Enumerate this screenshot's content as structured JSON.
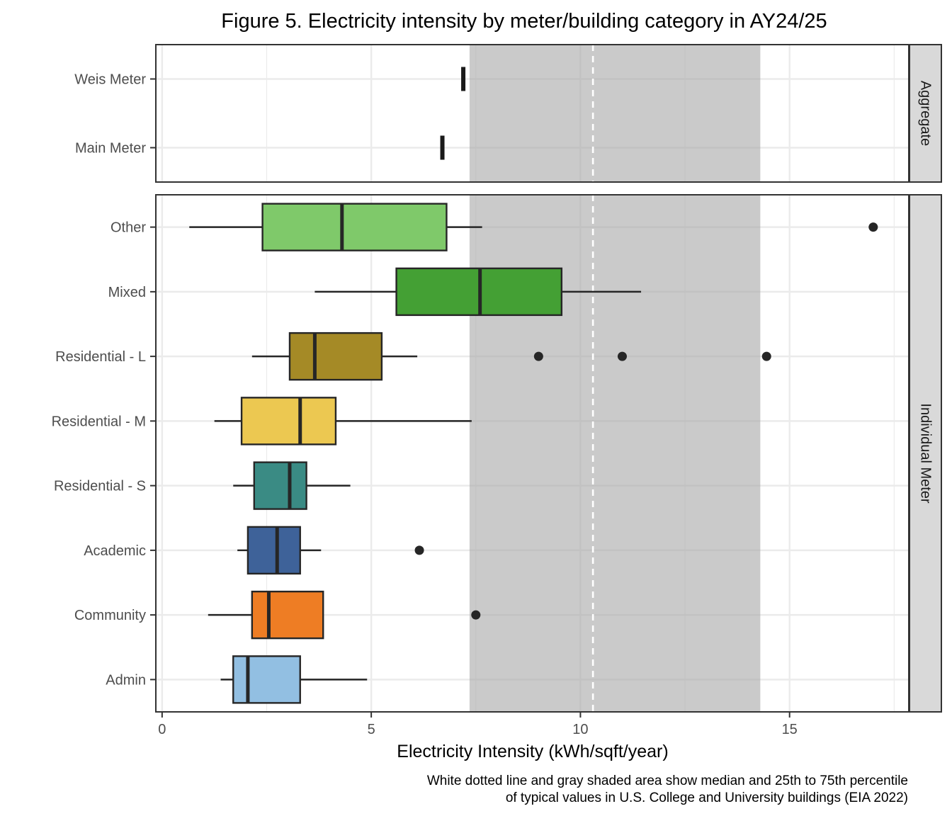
{
  "chart_data": {
    "type": "boxplot",
    "title": "Figure 5. Electricity intensity by meter/building category in AY24/25",
    "xlabel": "Electricity Intensity (kWh/sqft/year)",
    "ylabel": "",
    "xlim": [
      -0.15,
      17.85
    ],
    "x_ticks": [
      0,
      5,
      10,
      15
    ],
    "x_tick_labels": [
      "0",
      "5",
      "10",
      "15"
    ],
    "grid": true,
    "reference": {
      "median": 10.3,
      "p25": 7.35,
      "p75": 14.3,
      "shade_color": "#c9c9c9",
      "line_color": "#ffffff",
      "line_style": "dashed"
    },
    "caption_lines": [
      "White dotted line and gray shaded area show median and 25th to 75th percentile",
      "of typical values in U.S. College and University buildings (EIA 2022)"
    ],
    "facets": [
      {
        "label": "Aggregate",
        "categories": [
          "Weis Meter",
          "Main Meter"
        ],
        "series": [
          {
            "name": "Weis Meter",
            "value": 7.2
          },
          {
            "name": "Main Meter",
            "value": 6.7
          }
        ]
      },
      {
        "label": "Individual Meter",
        "categories": [
          "Other",
          "Mixed",
          "Residential - L",
          "Residential - M",
          "Residential - S",
          "Academic",
          "Community",
          "Admin"
        ],
        "series": [
          {
            "name": "Other",
            "whisker_low": 0.65,
            "q1": 2.4,
            "median": 4.3,
            "q3": 6.8,
            "whisker_high": 7.65,
            "outliers": [
              17.0
            ],
            "color": "#7fc96a"
          },
          {
            "name": "Mixed",
            "whisker_low": 3.65,
            "q1": 5.6,
            "median": 7.6,
            "q3": 9.55,
            "whisker_high": 11.45,
            "outliers": [],
            "color": "#44a034"
          },
          {
            "name": "Residential - L",
            "whisker_low": 2.15,
            "q1": 3.05,
            "median": 3.65,
            "q3": 5.25,
            "whisker_high": 6.1,
            "outliers": [
              9.0,
              11.0,
              14.45
            ],
            "color": "#a58a26"
          },
          {
            "name": "Residential - M",
            "whisker_low": 1.25,
            "q1": 1.9,
            "median": 3.3,
            "q3": 4.15,
            "whisker_high": 7.4,
            "outliers": [],
            "color": "#ecc851"
          },
          {
            "name": "Residential - S",
            "whisker_low": 1.7,
            "q1": 2.2,
            "median": 3.05,
            "q3": 3.45,
            "whisker_high": 4.5,
            "outliers": [],
            "color": "#3a8b84"
          },
          {
            "name": "Academic",
            "whisker_low": 1.8,
            "q1": 2.05,
            "median": 2.75,
            "q3": 3.3,
            "whisker_high": 3.8,
            "outliers": [
              6.15
            ],
            "color": "#3e6299"
          },
          {
            "name": "Community",
            "whisker_low": 1.1,
            "q1": 2.15,
            "median": 2.55,
            "q3": 3.85,
            "whisker_high": 3.85,
            "outliers": [
              7.5
            ],
            "color": "#ee7d24"
          },
          {
            "name": "Admin",
            "whisker_low": 1.4,
            "q1": 1.7,
            "median": 2.05,
            "q3": 3.3,
            "whisker_high": 4.9,
            "outliers": [],
            "color": "#92bfe2"
          }
        ]
      }
    ]
  }
}
